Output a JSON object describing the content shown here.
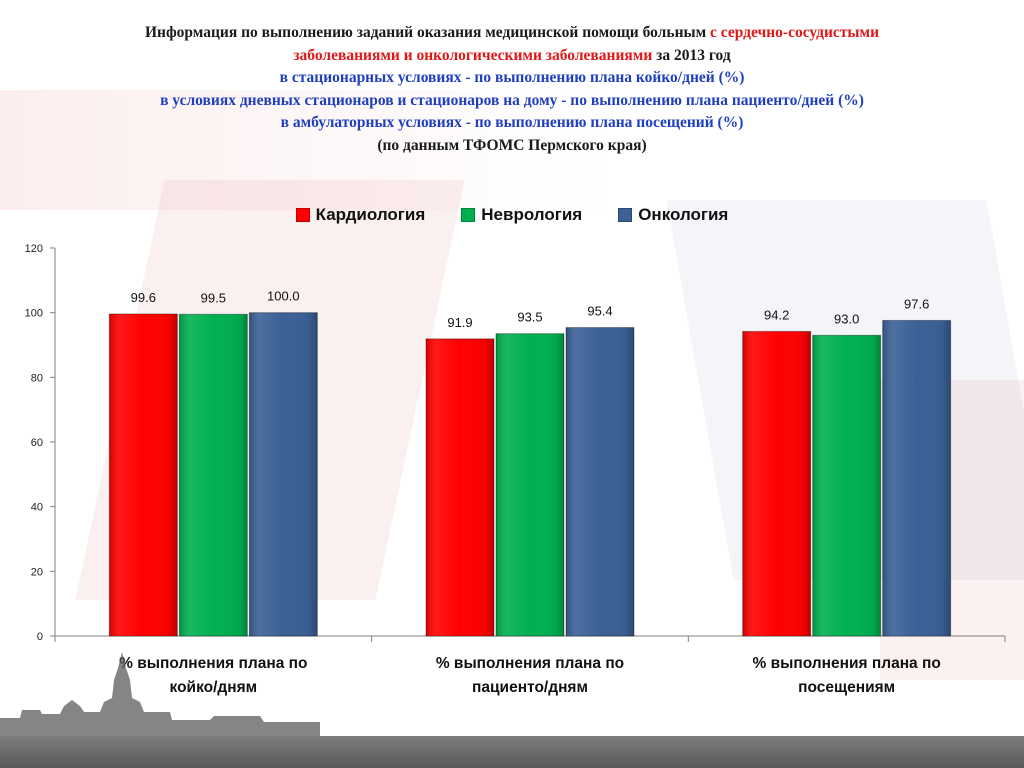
{
  "title": {
    "line1_part1": "Информация по выполнению заданий оказания медицинской помощи больным",
    "line1_part2": " с сердечно-сосудистыми",
    "line2_part1": "заболеваниями и онкологическими заболеваниями",
    "line2_part2": "  за 2013 год",
    "line3": "в стационарных условиях - по выполнению плана койко/дней (%)",
    "line4": "в условиях дневных стационаров и стационаров на дому - по выполнению плана пациенто/дней (%)",
    "line5": "в амбулаторных условиях  -  по выполнению плана посещений (%)",
    "line6": "(по данным ТФОМС Пермского края)"
  },
  "colors": {
    "title_dark": "#1a1a1a",
    "title_red": "#e01818",
    "title_blue": "#1f3fc0",
    "footer": "#666666"
  },
  "chart_data": {
    "type": "bar",
    "categories": [
      [
        "% выполнения плана по",
        "койко/дням"
      ],
      [
        "% выполнения плана по",
        "пациенто/дням"
      ],
      [
        "% выполнения плана по",
        "посещениям"
      ]
    ],
    "series": [
      {
        "name": "Кардиология",
        "color": "#ff0000",
        "values": [
          99.6,
          91.9,
          94.2
        ],
        "labels": [
          "99.6",
          "91.9",
          "94.2"
        ]
      },
      {
        "name": "Неврология",
        "color": "#00b050",
        "values": [
          99.5,
          93.5,
          93.0
        ],
        "labels": [
          "99.5",
          "93.5",
          "93.0"
        ]
      },
      {
        "name": "Онкология",
        "color": "#3a6096",
        "values": [
          100.0,
          95.4,
          97.6
        ],
        "labels": [
          "100.0",
          "95.4",
          "97.6"
        ]
      }
    ],
    "ylim": [
      0,
      120
    ],
    "yticks": [
      "0",
      "20",
      "40",
      "60",
      "80",
      "100",
      "120"
    ],
    "legend_position": "top",
    "grid": false
  }
}
